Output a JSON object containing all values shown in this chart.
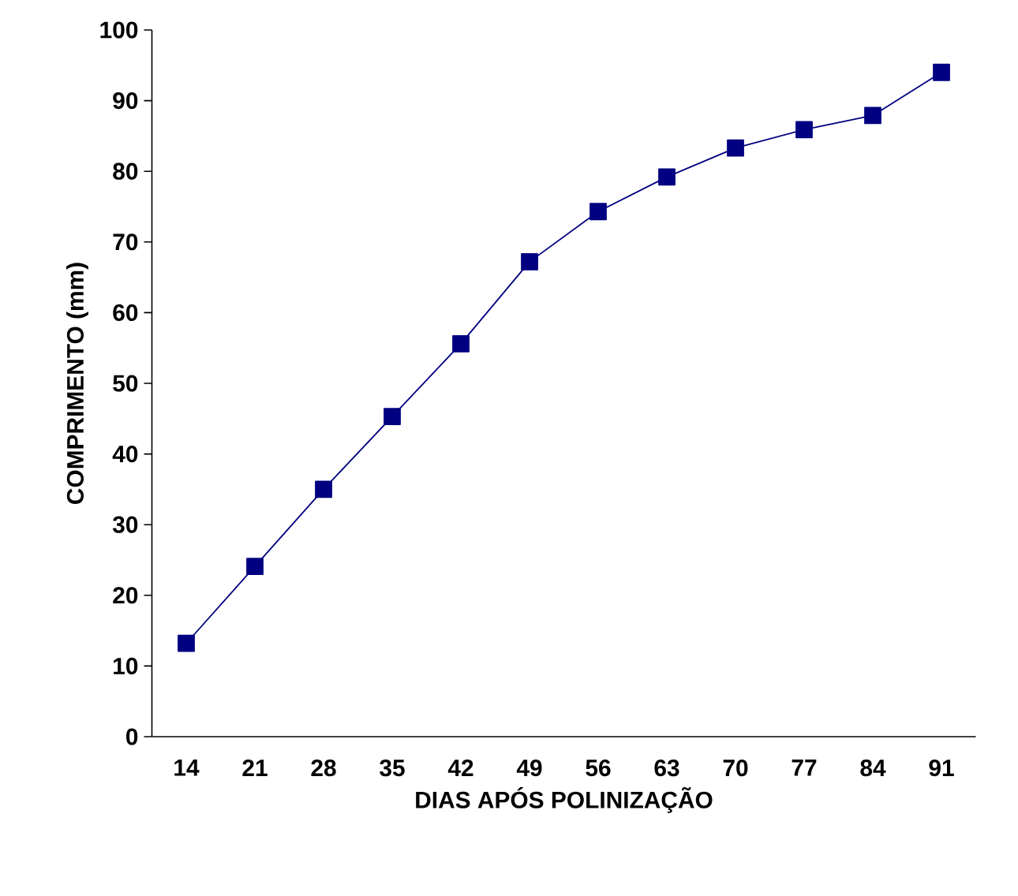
{
  "chart_data": {
    "type": "line",
    "xlabel": "DIAS APÓS POLINIZAÇÃO",
    "ylabel": "COMPRIMENTO (mm)",
    "categories": [
      "14",
      "21",
      "28",
      "35",
      "42",
      "49",
      "56",
      "63",
      "70",
      "77",
      "84",
      "91"
    ],
    "values": [
      13.2,
      24.1,
      35.0,
      45.3,
      55.6,
      67.2,
      74.3,
      79.2,
      83.3,
      85.9,
      87.9,
      94.0
    ],
    "color": "#000080",
    "marker": "square",
    "line_style": "solid",
    "ylim": [
      0,
      100
    ],
    "yticks": [
      0,
      10,
      20,
      30,
      40,
      50,
      60,
      70,
      80,
      90,
      100
    ]
  }
}
